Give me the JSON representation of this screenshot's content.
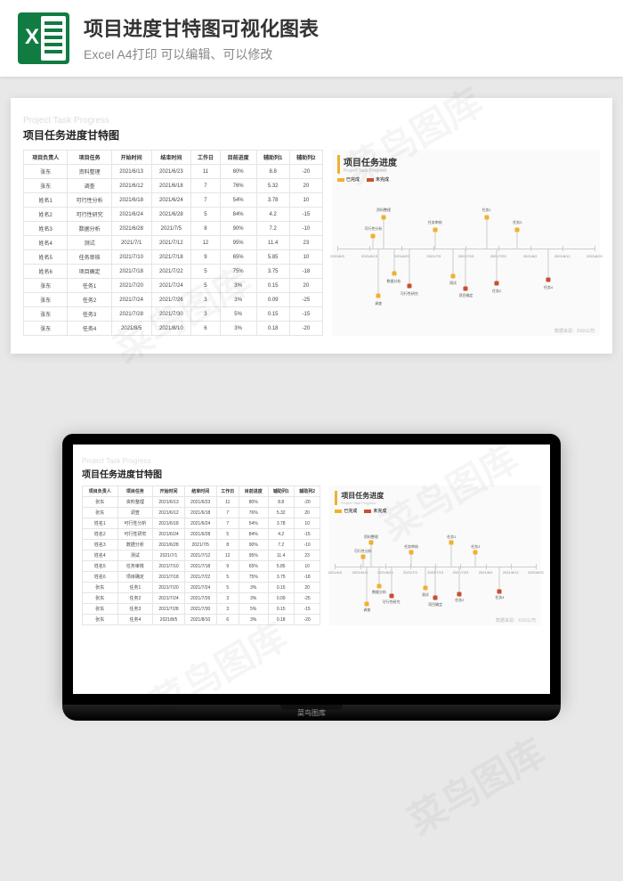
{
  "header": {
    "title": "项目进度甘特图可视化图表",
    "subtitle": "Excel A4打印 可以编辑、可以修改"
  },
  "sheet": {
    "subtitle_en": "Project Task Progress",
    "subtitle_cn": "项目任务进度甘特图",
    "columns": [
      "项目负责人",
      "项目任务",
      "开始时间",
      "结束时间",
      "工作日",
      "目前进度",
      "辅助列1",
      "辅助列2"
    ],
    "rows": [
      [
        "张东",
        "资料整理",
        "2021/6/13",
        "2021/6/23",
        "11",
        "80%",
        "8.8",
        "-20"
      ],
      [
        "张东",
        "调查",
        "2021/6/12",
        "2021/6/18",
        "7",
        "76%",
        "5.32",
        "20"
      ],
      [
        "姓名1",
        "可行性分析",
        "2021/6/18",
        "2021/6/24",
        "7",
        "54%",
        "3.78",
        "10"
      ],
      [
        "姓名2",
        "可行性研究",
        "2021/6/24",
        "2021/6/28",
        "5",
        "84%",
        "4.2",
        "-15"
      ],
      [
        "姓名3",
        "数据分析",
        "2021/6/28",
        "2021/7/5",
        "8",
        "90%",
        "7.2",
        "-10"
      ],
      [
        "姓名4",
        "测试",
        "2021/7/1",
        "2021/7/12",
        "12",
        "95%",
        "11.4",
        "23"
      ],
      [
        "姓名5",
        "任务审核",
        "2021/7/10",
        "2021/7/18",
        "9",
        "65%",
        "5.85",
        "10"
      ],
      [
        "姓名6",
        "项目确定",
        "2021/7/18",
        "2021/7/22",
        "5",
        "75%",
        "3.75",
        "-18"
      ],
      [
        "张东",
        "任务1",
        "2021/7/20",
        "2021/7/24",
        "5",
        "3%",
        "0.15",
        "20"
      ],
      [
        "张东",
        "任务2",
        "2021/7/24",
        "2021/7/26",
        "3",
        "3%",
        "0.09",
        "-25"
      ],
      [
        "张东",
        "任务3",
        "2021/7/28",
        "2021/7/30",
        "3",
        "5%",
        "0.15",
        "-15"
      ],
      [
        "张东",
        "任务4",
        "2021/8/5",
        "2021/8/10",
        "6",
        "3%",
        "0.18",
        "-20"
      ]
    ]
  },
  "chart": {
    "title_cn": "项目任务进度",
    "title_en": "Project Task Progress",
    "legend": [
      {
        "label": "已完成",
        "color": "#f0b030"
      },
      {
        "label": "未完成",
        "color": "#c94f2f"
      }
    ],
    "axis_dates": [
      "2021/6/3",
      "2021/6/13",
      "2021/6/23",
      "2021/7/3",
      "2021/7/13",
      "2021/7/23",
      "2021/8/2",
      "2021/8/12",
      "2021/8/22"
    ],
    "markers": [
      {
        "x": 18,
        "y": 25,
        "label": "资料整理",
        "dir": "up",
        "color": "#f0b030"
      },
      {
        "x": 14,
        "y": 40,
        "label": "可行性分析",
        "dir": "up",
        "color": "#f0b030"
      },
      {
        "x": 38,
        "y": 35,
        "label": "任务审核",
        "dir": "up",
        "color": "#f0b030"
      },
      {
        "x": 58,
        "y": 25,
        "label": "任务1",
        "dir": "up",
        "color": "#f0b030"
      },
      {
        "x": 70,
        "y": 35,
        "label": "任务3",
        "dir": "up",
        "color": "#f0b030"
      },
      {
        "x": 22,
        "y": 70,
        "label": "数据分析",
        "dir": "down",
        "color": "#f0b030"
      },
      {
        "x": 28,
        "y": 80,
        "label": "可行性研究",
        "dir": "down",
        "color": "#c94f2f"
      },
      {
        "x": 16,
        "y": 88,
        "label": "调查",
        "dir": "down",
        "color": "#f0b030"
      },
      {
        "x": 45,
        "y": 72,
        "label": "测试",
        "dir": "down",
        "color": "#f0b030"
      },
      {
        "x": 50,
        "y": 82,
        "label": "项目确定",
        "dir": "down",
        "color": "#c94f2f"
      },
      {
        "x": 62,
        "y": 78,
        "label": "任务2",
        "dir": "down",
        "color": "#c94f2f"
      },
      {
        "x": 82,
        "y": 75,
        "label": "任务4",
        "dir": "down",
        "color": "#c94f2f"
      }
    ],
    "footer": "数据来源：XXX公司"
  },
  "laptop_brand": "菜鸟图库",
  "watermark_text": "菜鸟图库"
}
